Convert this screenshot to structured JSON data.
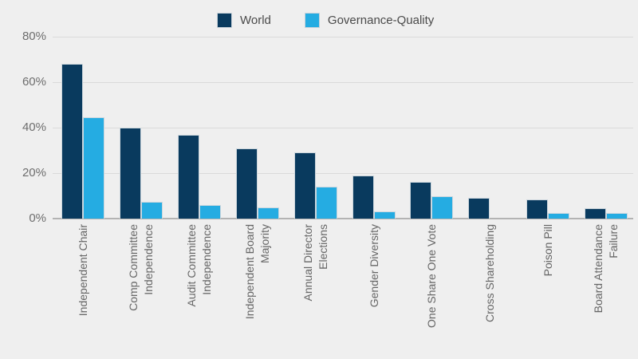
{
  "chart_data": {
    "type": "bar",
    "title": "",
    "xlabel": "",
    "ylabel": "",
    "categories": [
      "Independent Chair",
      "Comp Committee Independence",
      "Audit Committee Independence",
      "Independent Board Majority",
      "Annual Director Elections",
      "Gender Diversity",
      "One Share One Vote",
      "Cross Shareholding",
      "Poison Pill",
      "Board Attendance Failure"
    ],
    "category_label_lines": [
      [
        "Independent Chair"
      ],
      [
        "Comp Committee",
        "Independence"
      ],
      [
        "Audit Committee",
        "Independence"
      ],
      [
        "Independent Board",
        "Majority"
      ],
      [
        "Annual Director",
        "Elections"
      ],
      [
        "Gender Diversity"
      ],
      [
        "One Share One Vote"
      ],
      [
        "Cross Shareholding"
      ],
      [
        "Poison Pill"
      ],
      [
        "Board Attendance",
        "Failure"
      ]
    ],
    "series": [
      {
        "name": "World",
        "color": "#093a5e",
        "values": [
          68,
          40,
          37,
          31,
          29,
          19,
          16,
          9,
          8.5,
          4.5
        ]
      },
      {
        "name": "Governance-Quality",
        "color": "#25ace2",
        "values": [
          44.5,
          7.5,
          6,
          5,
          14,
          3,
          10,
          0,
          2.5,
          2.5
        ]
      }
    ],
    "ylim": [
      0,
      80
    ],
    "ytick_labels": [
      "80%",
      "60%",
      "40%",
      "20%",
      "0%"
    ],
    "grid": true,
    "legend_position": "top-center",
    "colors": {
      "background": "#efefef",
      "gridline": "#dadada",
      "axis_line": "#b3b3b3",
      "tick_text": "#6e6e6e",
      "legend_text": "#4a4a4a"
    }
  }
}
